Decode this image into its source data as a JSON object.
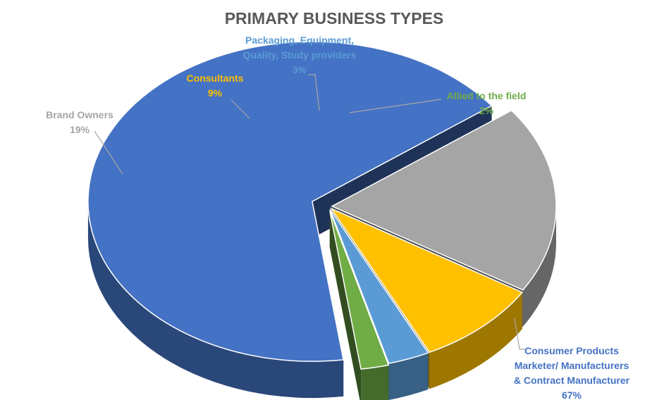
{
  "chart_data": {
    "type": "pie",
    "title": "PRIMARY BUSINESS TYPES",
    "slices": [
      {
        "label_lines": [
          "Consumer Products",
          "Marketer/ Manufacturers",
          "& Contract Manufacturer"
        ],
        "pct_text": "67%",
        "value": 67,
        "color": "#4472C4"
      },
      {
        "label_lines": [
          "Brand Owners"
        ],
        "pct_text": "19%",
        "value": 19,
        "color": "#A5A5A5"
      },
      {
        "label_lines": [
          "Consultants"
        ],
        "pct_text": "9%",
        "value": 9,
        "color": "#FFC000"
      },
      {
        "label_lines": [
          "Packaging, Equipment,",
          "Quality, Study providers"
        ],
        "pct_text": "3%",
        "value": 3,
        "color": "#5B9BD5"
      },
      {
        "label_lines": [
          "Allied to the field"
        ],
        "pct_text": "2%",
        "value": 2,
        "color": "#70AD47"
      }
    ],
    "legend": "none",
    "style": "3d-exploded"
  }
}
